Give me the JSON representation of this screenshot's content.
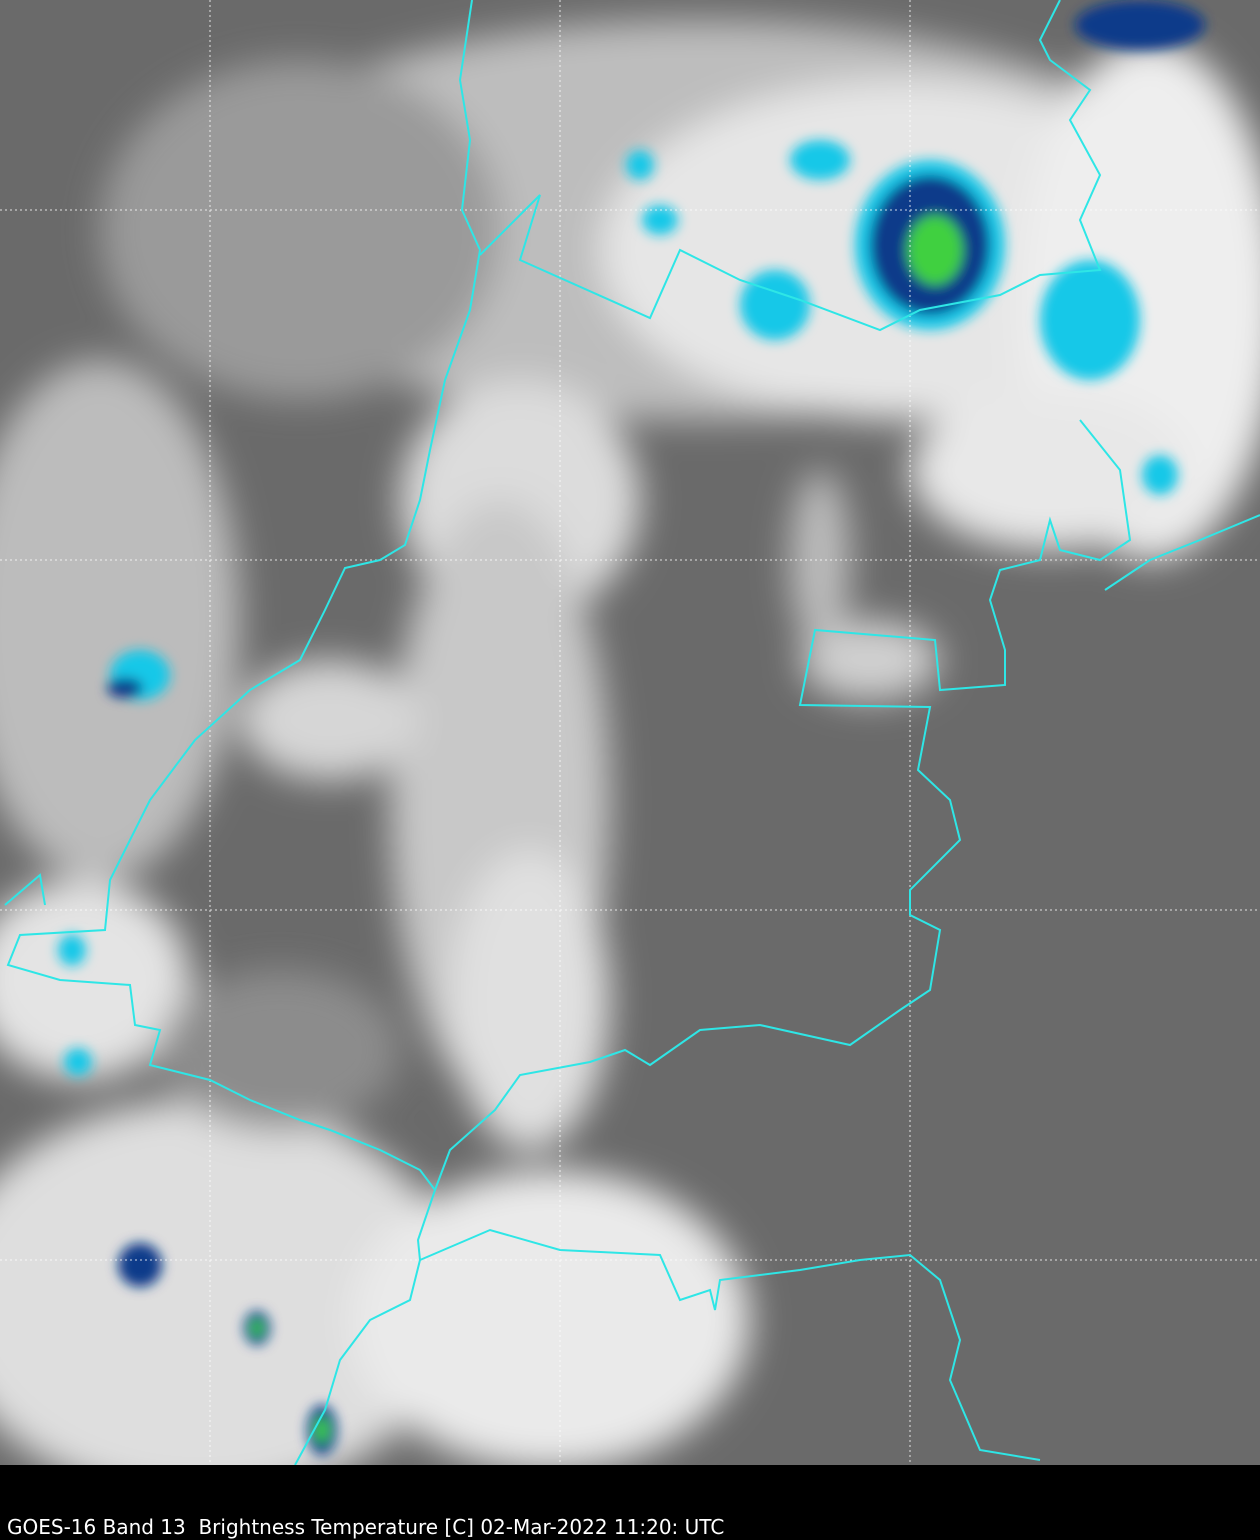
{
  "caption": "GOES-16 Band 13  Brightness Temperature [C] 02-Mar-2022 11:20: UTC",
  "colors": {
    "background_gray": "#6a6a6a",
    "cloud": "#f2f2f2",
    "border": "#2ee6e6",
    "cold_cyan": "#18c8e8",
    "cold_blue": "#0a3a8a",
    "coldest_green": "#40d040",
    "gridline": "#ffffff",
    "caption_bar": "#000000"
  }
}
